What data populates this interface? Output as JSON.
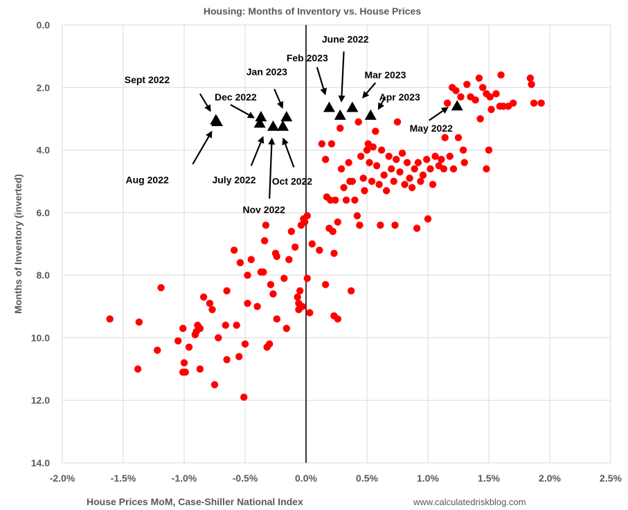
{
  "chart_data": {
    "type": "scatter",
    "title": "Housing: Months of Inventory vs. House Prices",
    "xlabel": "House Prices MoM, Case-Shiller National Index",
    "ylabel": "Months of Inventory (inverted)",
    "source": "www.calculatedriskblog.com",
    "xlim": [
      -0.02,
      0.025
    ],
    "ylim": [
      0,
      14
    ],
    "y_inverted": true,
    "grid": true,
    "x_ticks": [
      {
        "v": -0.02,
        "label": "-2.0%"
      },
      {
        "v": -0.015,
        "label": "-1.5%"
      },
      {
        "v": -0.01,
        "label": "-1.0%"
      },
      {
        "v": -0.005,
        "label": "-0.5%"
      },
      {
        "v": 0.0,
        "label": "0.0%"
      },
      {
        "v": 0.005,
        "label": "0.5%"
      },
      {
        "v": 0.01,
        "label": "1.0%"
      },
      {
        "v": 0.015,
        "label": "1.5%"
      },
      {
        "v": 0.02,
        "label": "2.0%"
      },
      {
        "v": 0.025,
        "label": "2.5%"
      }
    ],
    "y_ticks": [
      {
        "v": 0,
        "label": "0.0"
      },
      {
        "v": 2,
        "label": "2.0"
      },
      {
        "v": 4,
        "label": "4.0"
      },
      {
        "v": 6,
        "label": "6.0"
      },
      {
        "v": 8,
        "label": "8.0"
      },
      {
        "v": 10,
        "label": "10.0"
      },
      {
        "v": 12,
        "label": "12.0"
      },
      {
        "v": 14,
        "label": "14.0"
      }
    ],
    "series": [
      {
        "marker": "circle",
        "color": "#ff0000",
        "points": [
          [
            -0.0161,
            9.4
          ],
          [
            -0.0137,
            9.5
          ],
          [
            -0.0138,
            11.0
          ],
          [
            -0.0119,
            8.4
          ],
          [
            -0.0122,
            10.4
          ],
          [
            -0.0105,
            10.1
          ],
          [
            -0.0101,
            9.7
          ],
          [
            -0.01,
            10.8
          ],
          [
            -0.0101,
            11.1
          ],
          [
            -0.0099,
            11.1
          ],
          [
            -0.0096,
            10.3
          ],
          [
            -0.0091,
            9.9
          ],
          [
            -0.0089,
            9.6
          ],
          [
            -0.009,
            9.8
          ],
          [
            -0.0087,
            9.7
          ],
          [
            -0.0087,
            11.0
          ],
          [
            -0.0084,
            8.7
          ],
          [
            -0.0079,
            8.9
          ],
          [
            -0.0077,
            9.1
          ],
          [
            -0.0075,
            11.5
          ],
          [
            -0.0072,
            10.0
          ],
          [
            -0.0066,
            9.6
          ],
          [
            -0.0065,
            10.7
          ],
          [
            -0.0065,
            8.5
          ],
          [
            -0.0059,
            7.2
          ],
          [
            -0.0057,
            9.6
          ],
          [
            -0.0055,
            10.6
          ],
          [
            -0.0054,
            7.6
          ],
          [
            -0.0051,
            11.9
          ],
          [
            -0.005,
            10.2
          ],
          [
            -0.0048,
            8.9
          ],
          [
            -0.0048,
            8.0
          ],
          [
            -0.0045,
            7.5
          ],
          [
            -0.004,
            9.0
          ],
          [
            -0.0037,
            7.9
          ],
          [
            -0.0035,
            7.9
          ],
          [
            -0.0034,
            6.9
          ],
          [
            -0.0033,
            6.4
          ],
          [
            -0.0032,
            10.3
          ],
          [
            -0.003,
            10.2
          ],
          [
            -0.0029,
            8.3
          ],
          [
            -0.0027,
            8.6
          ],
          [
            -0.0025,
            7.3
          ],
          [
            -0.0024,
            9.4
          ],
          [
            -0.0024,
            7.4
          ],
          [
            -0.0018,
            8.1
          ],
          [
            -0.0016,
            9.7
          ],
          [
            -0.0014,
            7.5
          ],
          [
            -0.0012,
            6.6
          ],
          [
            -0.0009,
            7.1
          ],
          [
            -0.0007,
            8.7
          ],
          [
            -0.0006,
            8.9
          ],
          [
            -0.0006,
            9.1
          ],
          [
            -0.0005,
            8.5
          ],
          [
            -0.0004,
            6.4
          ],
          [
            -0.0003,
            9.0
          ],
          [
            -0.0002,
            6.2
          ],
          [
            -0.0001,
            6.3
          ],
          [
            0.0001,
            6.1
          ],
          [
            0.0001,
            8.1
          ],
          [
            0.0003,
            9.2
          ],
          [
            0.0005,
            7.0
          ],
          [
            0.0011,
            7.2
          ],
          [
            0.0013,
            3.8
          ],
          [
            0.0016,
            8.3
          ],
          [
            0.0016,
            4.3
          ],
          [
            0.0017,
            5.5
          ],
          [
            0.0019,
            6.5
          ],
          [
            0.002,
            5.6
          ],
          [
            0.0021,
            3.8
          ],
          [
            0.0022,
            6.6
          ],
          [
            0.0023,
            7.3
          ],
          [
            0.0023,
            9.3
          ],
          [
            0.0024,
            5.6
          ],
          [
            0.0026,
            9.4
          ],
          [
            0.0026,
            6.3
          ],
          [
            0.0028,
            3.3
          ],
          [
            0.0029,
            4.6
          ],
          [
            0.0031,
            5.2
          ],
          [
            0.0033,
            5.6
          ],
          [
            0.0035,
            4.4
          ],
          [
            0.0036,
            5.0
          ],
          [
            0.0037,
            8.5
          ],
          [
            0.0038,
            5.0
          ],
          [
            0.004,
            5.6
          ],
          [
            0.0042,
            6.1
          ],
          [
            0.0043,
            3.1
          ],
          [
            0.0044,
            6.4
          ],
          [
            0.0045,
            4.2
          ],
          [
            0.0047,
            4.9
          ],
          [
            0.0048,
            5.3
          ],
          [
            0.005,
            4.0
          ],
          [
            0.0051,
            3.8
          ],
          [
            0.0052,
            4.4
          ],
          [
            0.0054,
            5.0
          ],
          [
            0.0055,
            3.9
          ],
          [
            0.0057,
            3.4
          ],
          [
            0.0058,
            4.5
          ],
          [
            0.006,
            5.1
          ],
          [
            0.0061,
            6.4
          ],
          [
            0.0062,
            4.0
          ],
          [
            0.0064,
            4.8
          ],
          [
            0.0066,
            5.3
          ],
          [
            0.0068,
            4.2
          ],
          [
            0.007,
            4.6
          ],
          [
            0.0072,
            5.0
          ],
          [
            0.0073,
            6.4
          ],
          [
            0.0074,
            4.3
          ],
          [
            0.0075,
            3.1
          ],
          [
            0.0077,
            4.7
          ],
          [
            0.0079,
            4.1
          ],
          [
            0.0081,
            5.1
          ],
          [
            0.0083,
            4.4
          ],
          [
            0.0085,
            4.9
          ],
          [
            0.0087,
            5.2
          ],
          [
            0.0089,
            4.6
          ],
          [
            0.0091,
            6.5
          ],
          [
            0.0092,
            4.4
          ],
          [
            0.0094,
            5.0
          ],
          [
            0.0096,
            4.8
          ],
          [
            0.0099,
            4.3
          ],
          [
            0.01,
            6.2
          ],
          [
            0.0102,
            4.6
          ],
          [
            0.0104,
            5.1
          ],
          [
            0.0106,
            4.2
          ],
          [
            0.0109,
            4.5
          ],
          [
            0.0111,
            4.3
          ],
          [
            0.0113,
            4.6
          ],
          [
            0.0114,
            3.6
          ],
          [
            0.0116,
            2.5
          ],
          [
            0.0118,
            4.2
          ],
          [
            0.012,
            2.0
          ],
          [
            0.0121,
            4.6
          ],
          [
            0.0123,
            2.1
          ],
          [
            0.0125,
            3.6
          ],
          [
            0.0127,
            2.3
          ],
          [
            0.0129,
            4.0
          ],
          [
            0.013,
            4.4
          ],
          [
            0.0132,
            1.9
          ],
          [
            0.0135,
            2.3
          ],
          [
            0.0139,
            2.4
          ],
          [
            0.0142,
            1.7
          ],
          [
            0.0143,
            3.0
          ],
          [
            0.0145,
            2.0
          ],
          [
            0.0148,
            2.2
          ],
          [
            0.0148,
            4.6
          ],
          [
            0.015,
            4.0
          ],
          [
            0.0151,
            2.3
          ],
          [
            0.0152,
            2.7
          ],
          [
            0.0156,
            2.2
          ],
          [
            0.0159,
            2.6
          ],
          [
            0.016,
            1.6
          ],
          [
            0.0162,
            2.6
          ],
          [
            0.0166,
            2.6
          ],
          [
            0.017,
            2.5
          ],
          [
            0.0184,
            1.7
          ],
          [
            0.0185,
            1.9
          ],
          [
            0.0187,
            2.5
          ],
          [
            0.0193,
            2.5
          ]
        ]
      },
      {
        "marker": "triangle",
        "color": "#000000",
        "points": [
          [
            -0.0074,
            3.05
          ],
          [
            -0.0073,
            3.1
          ],
          [
            -0.0038,
            3.15
          ],
          [
            -0.0037,
            2.95
          ],
          [
            -0.0027,
            3.25
          ],
          [
            -0.0019,
            3.25
          ],
          [
            -0.0016,
            2.95
          ],
          [
            0.0019,
            2.65
          ],
          [
            0.0028,
            2.9
          ],
          [
            0.0038,
            2.65
          ],
          [
            0.0053,
            2.9
          ],
          [
            0.0124,
            2.6
          ]
        ]
      }
    ],
    "annotations": [
      {
        "text": "Sept 2022",
        "lx": -0.0149,
        "ly": 1.75,
        "ax1": -0.0087,
        "ay1": 2.2,
        "ax2": -0.0078,
        "ay2": 2.78
      },
      {
        "text": "Aug 2022",
        "lx": -0.0148,
        "ly": 4.95,
        "ax1": -0.0093,
        "ay1": 4.45,
        "ax2": -0.0077,
        "ay2": 3.38
      },
      {
        "text": "Dec 2022",
        "lx": -0.0075,
        "ly": 2.3,
        "ax1": -0.0062,
        "ay1": 2.55,
        "ax2": -0.0042,
        "ay2": 2.98
      },
      {
        "text": "Jan 2023",
        "lx": -0.0049,
        "ly": 1.5,
        "ax1": -0.0026,
        "ay1": 2.05,
        "ax2": -0.0019,
        "ay2": 2.68
      },
      {
        "text": "July 2022",
        "lx": -0.0077,
        "ly": 4.95,
        "ax1": -0.0045,
        "ay1": 4.5,
        "ax2": -0.0035,
        "ay2": 3.55
      },
      {
        "text": "Nov 2022",
        "lx": -0.0052,
        "ly": 5.9,
        "ax1": -0.003,
        "ay1": 5.55,
        "ax2": -0.0028,
        "ay2": 3.6
      },
      {
        "text": "Oct 2022",
        "lx": -0.0028,
        "ly": 5.0,
        "ax1": -0.001,
        "ay1": 4.55,
        "ax2": -0.0019,
        "ay2": 3.6
      },
      {
        "text": "Feb 2023",
        "lx": -0.0016,
        "ly": 1.05,
        "ax1": 0.0009,
        "ay1": 1.35,
        "ax2": 0.0016,
        "ay2": 2.25
      },
      {
        "text": "June 2022",
        "lx": 0.0013,
        "ly": 0.45,
        "ax1": 0.0031,
        "ay1": 0.85,
        "ax2": 0.0029,
        "ay2": 2.48
      },
      {
        "text": "Mar 2023",
        "lx": 0.0048,
        "ly": 1.6,
        "ax1": 0.0057,
        "ay1": 1.85,
        "ax2": 0.0046,
        "ay2": 2.35
      },
      {
        "text": "Apr 2023",
        "lx": 0.006,
        "ly": 2.3,
        "ax1": 0.0065,
        "ay1": 2.3,
        "ax2": 0.0059,
        "ay2": 2.72
      },
      {
        "text": "May 2022",
        "lx": 0.0085,
        "ly": 3.3,
        "ax1": 0.0101,
        "ay1": 3.05,
        "ax2": 0.0117,
        "ay2": 2.62
      }
    ]
  }
}
